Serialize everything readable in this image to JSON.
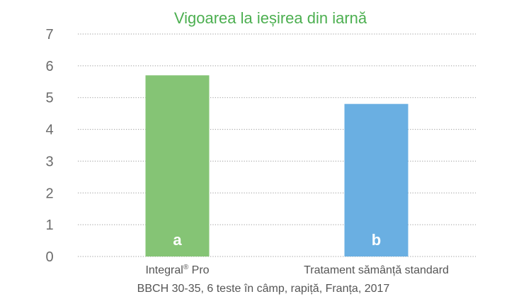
{
  "chart_data": {
    "type": "bar",
    "title": "Vigoarea la ieșirea din iarnă",
    "categories": [
      "Integral",
      "Tratament sămânță standard"
    ],
    "category_marks": [
      "®",
      ""
    ],
    "category_suffixes": [
      " Pro",
      ""
    ],
    "values": [
      5.7,
      4.8
    ],
    "bar_letters": [
      "a",
      "b"
    ],
    "bar_colors": [
      "#85c475",
      "#6aafe2"
    ],
    "title_color": "#4caf50",
    "xlabel": "BBCH 30-35, 6 teste în câmp, rapiță, Franța, 2017",
    "ylabel": "",
    "ylim": [
      0,
      7
    ],
    "yticks": [
      0,
      1,
      2,
      3,
      4,
      5,
      6,
      7
    ],
    "grid": true,
    "legend": "none"
  }
}
